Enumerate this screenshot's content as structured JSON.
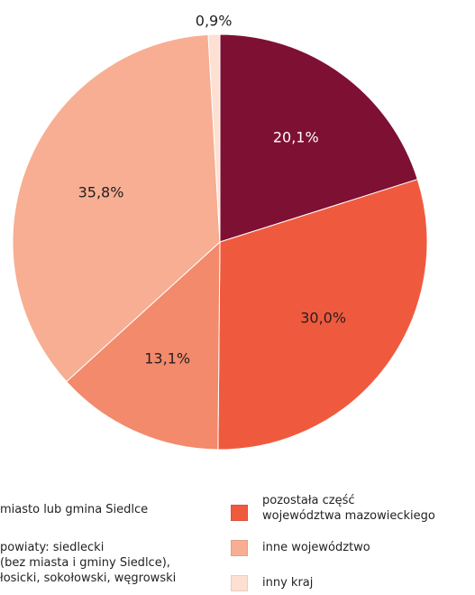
{
  "chart_data": {
    "type": "pie",
    "start_angle_deg": 0,
    "direction": "clockwise",
    "slices": [
      {
        "label": "miasto lub gmina Siedlce",
        "value_label": "20,1%",
        "value": 20.1,
        "color": "#7e1034",
        "label_color": "#ffffff"
      },
      {
        "label": "pozostała część\nwojewództwa mazowieckiego",
        "value_label": "30,0%",
        "value": 30.0,
        "color": "#ef5a3f",
        "label_color": "#231f20"
      },
      {
        "label": "powiaty: siedlecki\n(bez miasta i gminy Siedlce),\nłosicki, sokołowski, węgrowski",
        "value_label": "13,1%",
        "value": 13.1,
        "color": "#f28a6b",
        "label_color": "#231f20"
      },
      {
        "label": "inne województwo",
        "value_label": "35,8%",
        "value": 35.8,
        "color": "#f8ae92",
        "label_color": "#231f20"
      },
      {
        "label": "inny kraj",
        "value_label": "0,9%",
        "value": 0.9,
        "color": "#fde0d2",
        "label_color": "#231f20"
      }
    ]
  },
  "legend": {
    "left": [
      {
        "text": "miasto lub gmina Siedlce",
        "color": "#7e1034"
      },
      {
        "text": "powiaty: siedlecki\n(bez miasta i gminy Siedlce),\nłosicki, sokołowski, węgrowski",
        "color": "#f28a6b"
      }
    ],
    "right": [
      {
        "text": "pozostała część\nwojewództwa mazowieckiego",
        "color": "#ef5a3f"
      },
      {
        "text": "inne województwo",
        "color": "#f8ae92"
      },
      {
        "text": "inny kraj",
        "color": "#fde0d2"
      }
    ]
  }
}
